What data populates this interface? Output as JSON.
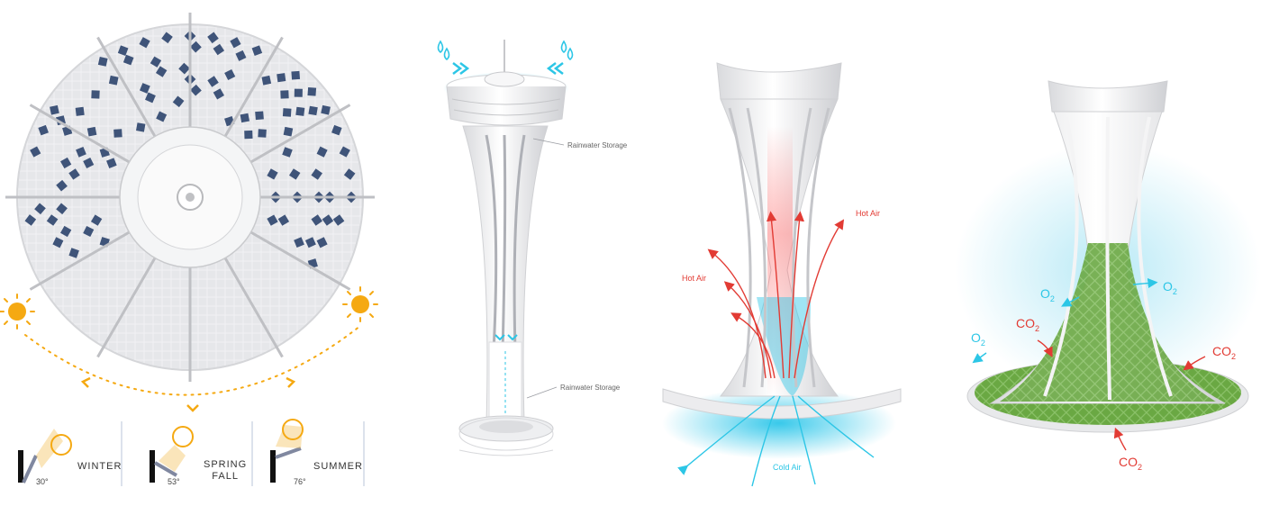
{
  "colors": {
    "panel_blue": "#3f5479",
    "sun": "#f5a912",
    "water": "#2cc6e6",
    "hot": "#e23b34",
    "green": "#6fae45",
    "structure": "#e9eaec"
  },
  "solar": {
    "seasons": [
      {
        "label": "WINTER",
        "angle": "30°"
      },
      {
        "label": "SPRING\nFALL",
        "angle": "53°"
      },
      {
        "label": "SUMMER",
        "angle": "76°"
      }
    ]
  },
  "rain": {
    "label_top": "Rainwater Storage",
    "label_bottom": "Rainwater Storage"
  },
  "air": {
    "hot_left": "Hot Air",
    "hot_right": "Hot Air",
    "cold": "Cold Air"
  },
  "gas": {
    "o2": "O",
    "co2": "CO",
    "sub": "2"
  }
}
